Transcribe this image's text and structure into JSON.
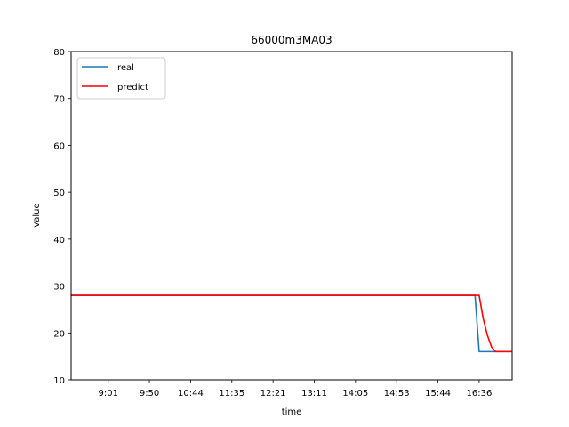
{
  "chart_data": {
    "type": "line",
    "title": "66000m3MA03",
    "xlabel": "time",
    "ylabel": "value",
    "ylim": [
      10,
      80
    ],
    "yticks": [
      10,
      20,
      30,
      40,
      50,
      60,
      70,
      80
    ],
    "xlim": [
      0,
      107
    ],
    "xtick_positions": [
      9,
      19,
      29,
      39,
      49,
      59,
      69,
      79,
      89,
      99
    ],
    "xtick_labels": [
      "9:01",
      "9:50",
      "10:44",
      "11:35",
      "12:21",
      "13:11",
      "14:05",
      "14:53",
      "15:44",
      "16:36"
    ],
    "grid": false,
    "legend_position": "top-left",
    "series": [
      {
        "name": "real",
        "color": "#1f77b4",
        "x": [
          0,
          98,
          99,
          100,
          101,
          102,
          103,
          104,
          105,
          106,
          107
        ],
        "y": [
          28,
          28,
          16,
          16,
          16,
          16,
          16,
          16,
          16,
          16,
          16
        ]
      },
      {
        "name": "predict",
        "color": "#ff0000",
        "x": [
          0,
          98,
          99,
          100,
          101,
          102,
          103,
          104,
          105,
          106,
          107
        ],
        "y": [
          28,
          28,
          28,
          23,
          19.5,
          17,
          16,
          16,
          16,
          16,
          16
        ]
      }
    ]
  }
}
